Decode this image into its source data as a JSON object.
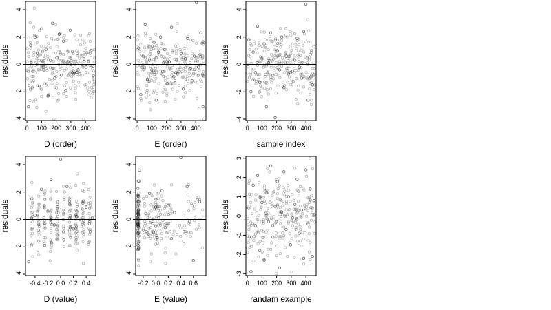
{
  "figure": {
    "y_axis_label": "residuals",
    "point_style": "open circles, semi-transparent black",
    "zero_line": true,
    "panels": [
      {
        "id": "d-order",
        "xlabel": "D (order)",
        "xlim": [
          -10,
          470
        ],
        "ylim": [
          -4.1,
          4.6
        ],
        "xticks": [
          "0",
          "100",
          "200",
          "300",
          "400"
        ],
        "yticks": [
          "-4",
          "-2",
          "0",
          "2",
          "4"
        ],
        "vertical_ticks": true
      },
      {
        "id": "e-order",
        "xlabel": "E (order)",
        "xlim": [
          -10,
          470
        ],
        "ylim": [
          -4.1,
          4.6
        ],
        "xticks": [
          "0",
          "100",
          "200",
          "300",
          "400"
        ],
        "yticks": [
          "-4",
          "-2",
          "0",
          "2",
          "4"
        ],
        "vertical_ticks": true
      },
      {
        "id": "sample",
        "xlabel": "sample index",
        "xlim": [
          -10,
          470
        ],
        "ylim": [
          -4.1,
          4.6
        ],
        "xticks": [
          "0",
          "100",
          "200",
          "300",
          "400"
        ],
        "yticks": [
          "-4",
          "-2",
          "0",
          "2",
          "4"
        ],
        "vertical_ticks": true
      },
      {
        "id": "d-value",
        "xlabel": "D (value)",
        "xlim": [
          -0.55,
          0.55
        ],
        "ylim": [
          -4.1,
          4.6
        ],
        "xticks": [
          "-0.4",
          "-0.2",
          "0.0",
          "0.2",
          "0.4"
        ],
        "yticks": [
          "-4",
          "-2",
          "0",
          "2",
          "4"
        ],
        "vertical_ticks": false
      },
      {
        "id": "e-value",
        "xlabel": "E (value)",
        "xlim": [
          -0.32,
          0.8
        ],
        "ylim": [
          -4.1,
          4.6
        ],
        "xticks": [
          "-0.2",
          "0.0",
          "0.2",
          "0.4",
          "0.6"
        ],
        "yticks": [
          "-4",
          "-2",
          "0",
          "2",
          "4"
        ],
        "vertical_ticks": false
      },
      {
        "id": "random",
        "xlabel": "randam example",
        "xlim": [
          -10,
          470
        ],
        "ylim": [
          -3.1,
          3.1
        ],
        "xticks": [
          "0",
          "100",
          "200",
          "300",
          "400"
        ],
        "yticks": [
          "-3",
          "-2",
          "-1",
          "0",
          "1",
          "2",
          "3"
        ],
        "vertical_ticks": true
      }
    ]
  },
  "chart_data": [
    {
      "type": "scatter",
      "xlabel": "D (order)",
      "ylabel": "residuals",
      "xlim": [
        -10,
        470
      ],
      "ylim": [
        -4.1,
        4.6
      ],
      "zero_line": 0,
      "x": [
        10,
        25,
        40,
        55,
        70,
        85,
        100,
        115,
        130,
        145,
        160,
        175,
        190,
        205,
        220,
        235,
        250,
        265,
        280,
        295,
        310,
        320,
        330,
        340,
        350,
        360,
        375,
        390,
        405,
        420,
        435,
        450
      ],
      "y": [
        -3.1,
        1.4,
        -0.5,
        2.0,
        0.8,
        -1.6,
        2.6,
        -0.4,
        1.1,
        -2.3,
        0.3,
        3.0,
        -1.0,
        0.5,
        2.2,
        -0.8,
        1.7,
        -1.9,
        0.2,
        2.5,
        -0.6,
        -0.7,
        -0.5,
        -0.6,
        -0.4,
        -0.7,
        0.0,
        0.4,
        -0.2,
        0.2,
        1.0,
        -0.3
      ]
    },
    {
      "type": "scatter",
      "xlabel": "E (order)",
      "ylabel": "residuals",
      "xlim": [
        -10,
        470
      ],
      "ylim": [
        -4.1,
        4.6
      ],
      "zero_line": 0,
      "x": [
        10,
        25,
        40,
        55,
        70,
        85,
        100,
        115,
        130,
        145,
        160,
        175,
        190,
        205,
        220,
        235,
        250,
        265,
        275,
        285,
        300,
        315,
        330,
        345,
        360,
        375,
        390,
        405,
        420,
        435,
        450
      ],
      "y": [
        1.2,
        -2.2,
        0.6,
        2.9,
        -1.1,
        0.3,
        -0.4,
        1.6,
        -2.6,
        0.9,
        2.0,
        -0.5,
        1.1,
        -1.4,
        0.2,
        2.7,
        -0.9,
        -0.6,
        -0.7,
        -0.5,
        0.8,
        -1.8,
        0.4,
        1.9,
        -0.3,
        -1.2,
        0.6,
        4.5,
        -0.2,
        2.3,
        -3.1
      ]
    },
    {
      "type": "scatter",
      "xlabel": "sample index",
      "ylabel": "residuals",
      "xlim": [
        -10,
        470
      ],
      "ylim": [
        -4.1,
        4.6
      ],
      "zero_line": 0,
      "x": [
        10,
        25,
        40,
        55,
        70,
        85,
        100,
        115,
        130,
        145,
        160,
        175,
        190,
        205,
        220,
        235,
        250,
        265,
        280,
        295,
        310,
        325,
        340,
        355,
        370,
        385,
        400,
        415,
        430,
        445,
        455
      ],
      "y": [
        1.8,
        -2.0,
        0.9,
        -0.6,
        2.8,
        -1.3,
        0.4,
        1.5,
        -3.1,
        0.1,
        2.3,
        -0.8,
        -3.9,
        1.0,
        -0.4,
        2.0,
        -1.7,
        0.6,
        -0.7,
        -0.6,
        -0.5,
        0.3,
        1.9,
        -0.2,
        -1.0,
        2.4,
        4.4,
        -2.6,
        0.7,
        -1.5,
        1.3
      ]
    },
    {
      "type": "scatter",
      "xlabel": "D (value)",
      "ylabel": "residuals",
      "xlim": [
        -0.55,
        0.55
      ],
      "ylim": [
        -4.1,
        4.6
      ],
      "zero_line": 0,
      "x": [
        -0.5,
        -0.45,
        -0.4,
        -0.35,
        -0.3,
        -0.25,
        -0.2,
        -0.15,
        -0.1,
        -0.05,
        0.0,
        0.05,
        0.1,
        0.15,
        0.2,
        0.25,
        0.3,
        0.35,
        0.4,
        0.45,
        0.5
      ],
      "y": [
        -3.1,
        1.5,
        0.3,
        -0.8,
        2.2,
        -1.9,
        0.6,
        2.9,
        -0.4,
        1.1,
        4.4,
        -1.5,
        2.4,
        -0.6,
        -0.7,
        0.2,
        0.0,
        1.2,
        0.9,
        -0.3,
        0.1
      ]
    },
    {
      "type": "scatter",
      "xlabel": "E (value)",
      "ylabel": "residuals",
      "xlim": [
        -0.32,
        0.8
      ],
      "ylim": [
        -4.1,
        4.6
      ],
      "zero_line": 0,
      "x": [
        -0.28,
        -0.28,
        -0.28,
        -0.27,
        -0.27,
        -0.27,
        -0.26,
        -0.2,
        -0.1,
        -0.05,
        0.0,
        0.0,
        0.05,
        0.1,
        0.15,
        0.2,
        0.25,
        0.3,
        0.4,
        0.45,
        0.5,
        0.6,
        0.7
      ],
      "y": [
        -1.9,
        -0.5,
        0.4,
        1.3,
        -1.2,
        2.8,
        3.6,
        -0.8,
        1.9,
        -0.3,
        -0.5,
        0.9,
        0.1,
        2.1,
        -0.6,
        1.0,
        -1.4,
        0.5,
        4.5,
        -0.9,
        2.4,
        -3.0,
        1.3
      ]
    },
    {
      "type": "scatter",
      "xlabel": "randam example",
      "ylabel": "residuals",
      "xlim": [
        -10,
        470
      ],
      "ylim": [
        -3.1,
        3.1
      ],
      "zero_line": 0,
      "x": [
        10,
        25,
        40,
        55,
        70,
        85,
        100,
        115,
        130,
        145,
        160,
        175,
        190,
        205,
        220,
        235,
        250,
        265,
        280,
        295,
        310,
        325,
        340,
        355,
        370,
        385,
        400,
        415,
        430,
        445,
        455
      ],
      "y": [
        0.4,
        -2.9,
        1.6,
        -0.5,
        2.1,
        -1.8,
        0.7,
        -2.3,
        1.2,
        -0.3,
        2.6,
        -1.1,
        0.5,
        1.8,
        -2.7,
        0.2,
        2.3,
        -0.7,
        1.0,
        -1.5,
        -0.1,
        0.6,
        1.9,
        -0.9,
        0.3,
        -2.2,
        2.4,
        -0.4,
        1.4,
        -2.1,
        0.8
      ]
    }
  ]
}
